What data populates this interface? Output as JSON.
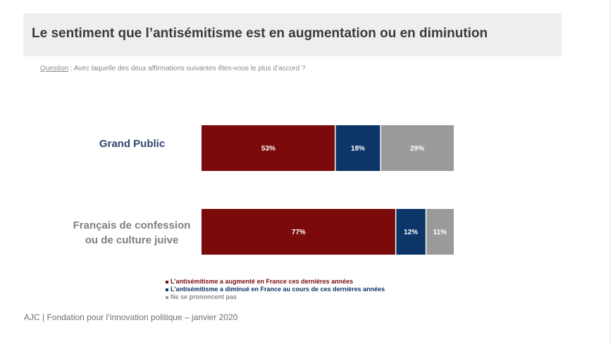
{
  "title": "Le sentiment que l’antisémitisme est en augmentation ou en diminution",
  "question_label": "Question",
  "question_text": " :  Avec laquelle des deux affirmations suivantes êtes-vous le plus d’accord ?",
  "colors": {
    "augmente": "#7b0a0a",
    "diminue": "#0d3668",
    "nsp": "#9a9a9a"
  },
  "chart_data": {
    "type": "bar",
    "orientation": "horizontal",
    "stacked": true,
    "categories": [
      "Grand Public",
      "Français de confession ou de culture juive"
    ],
    "category_lines": [
      [
        "Grand Public"
      ],
      [
        "Français de confession",
        "ou de culture juive"
      ]
    ],
    "series": [
      {
        "name": "L’antisémitisme a augmenté en France ces dernières années",
        "values": [
          53,
          77
        ],
        "labels": [
          "53%",
          "77%"
        ]
      },
      {
        "name": "L’antisémitisme a diminué en France au cours de ces dernières années",
        "values": [
          18,
          12
        ],
        "labels": [
          "18%",
          "12%"
        ]
      },
      {
        "name": "Ne se prononcent pas",
        "values": [
          29,
          11
        ],
        "labels": [
          "29%",
          "11%"
        ]
      }
    ],
    "xlim": [
      0,
      100
    ],
    "unit": "%",
    "legend_position": "bottom"
  },
  "footer": "AJC | Fondation pour l’innovation politique – janvier 2020"
}
